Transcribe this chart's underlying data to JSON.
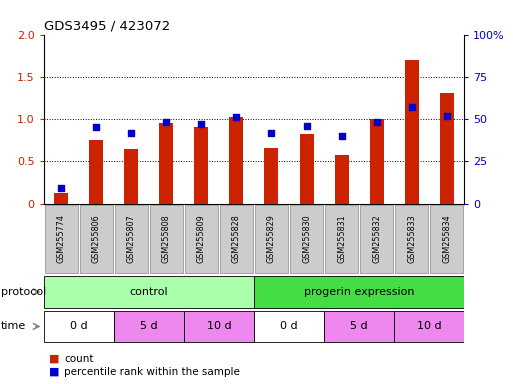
{
  "title": "GDS3495 / 423072",
  "samples": [
    "GSM255774",
    "GSM255806",
    "GSM255807",
    "GSM255808",
    "GSM255809",
    "GSM255828",
    "GSM255829",
    "GSM255830",
    "GSM255831",
    "GSM255832",
    "GSM255833",
    "GSM255834"
  ],
  "count_values": [
    0.12,
    0.75,
    0.65,
    0.95,
    0.9,
    1.02,
    0.66,
    0.82,
    0.58,
    1.0,
    1.7,
    1.31
  ],
  "percentile_values": [
    9,
    45,
    42,
    48,
    47,
    51,
    42,
    46,
    40,
    48,
    57,
    52
  ],
  "ylim_left": [
    0,
    2
  ],
  "ylim_right": [
    0,
    100
  ],
  "yticks_left": [
    0,
    0.5,
    1.0,
    1.5,
    2.0
  ],
  "yticks_right": [
    0,
    25,
    50,
    75,
    100
  ],
  "ytick_labels_right": [
    "0",
    "25",
    "50",
    "75",
    "100%"
  ],
  "bar_color": "#CC2200",
  "dot_color": "#0000CC",
  "bar_width": 0.4,
  "protocol_color_light": "#AAFFAA",
  "protocol_color_dark": "#44DD44",
  "time_color_white": "#FFFFFF",
  "time_color_magenta": "#EE88EE",
  "sample_label_bg": "#CCCCCC",
  "sample_label_edge": "#999999",
  "bg_color": "#FFFFFF",
  "grid_color": "#000000",
  "axis_color_left": "#CC2200",
  "axis_color_right": "#0000CC",
  "legend_count_color": "#CC2200",
  "legend_dot_color": "#0000CC"
}
